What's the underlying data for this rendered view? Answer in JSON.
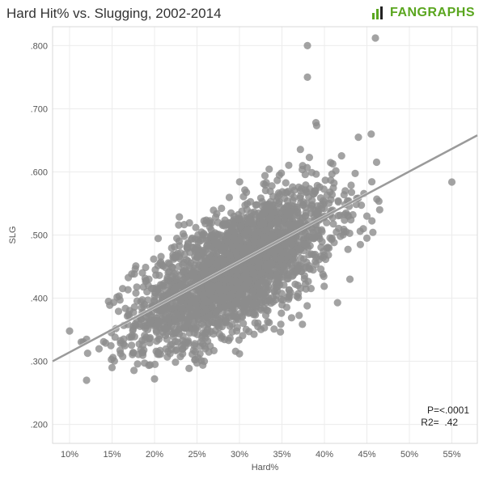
{
  "header": {
    "title": "Hard Hit% vs. Slugging, 2002-2014",
    "logo_text": "FANGRAPHS",
    "logo_color": "#5aa61f"
  },
  "chart_data": {
    "type": "scatter",
    "title": "Hard Hit% vs. Slugging, 2002-2014",
    "xlabel": "Hard%",
    "ylabel": "SLG",
    "xlim": [
      0.08,
      0.58
    ],
    "ylim": [
      0.17,
      0.83
    ],
    "x_ticks": [
      0.1,
      0.15,
      0.2,
      0.25,
      0.3,
      0.35,
      0.4,
      0.45,
      0.5,
      0.55
    ],
    "x_tick_labels": [
      "10%",
      "15%",
      "20%",
      "25%",
      "30%",
      "35%",
      "40%",
      "45%",
      "50%",
      "55%"
    ],
    "y_ticks": [
      0.2,
      0.3,
      0.4,
      0.5,
      0.6,
      0.7,
      0.8
    ],
    "y_tick_labels": [
      ".200",
      ".300",
      ".400",
      ".500",
      ".600",
      ".700",
      ".800"
    ],
    "grid": true,
    "point_color": "#8c8c8c",
    "trend_color": "#9a9a9a",
    "trend_line": {
      "x": [
        0.08,
        0.58
      ],
      "y": [
        0.3,
        0.658
      ]
    },
    "annotations": {
      "p_value": "P=<.0001",
      "r2": "R2=  .42"
    },
    "cloud": {
      "center_x": 0.295,
      "center_y": 0.445,
      "sd_x": 0.058,
      "sd_y": 0.062,
      "correlation": 0.65,
      "count": 2600
    },
    "outliers": [
      [
        0.38,
        0.8
      ],
      [
        0.46,
        0.812
      ],
      [
        0.38,
        0.75
      ],
      [
        0.55,
        0.584
      ],
      [
        0.1,
        0.348
      ],
      [
        0.12,
        0.27
      ],
      [
        0.2,
        0.272
      ],
      [
        0.45,
        0.495
      ],
      [
        0.39,
        0.678
      ],
      [
        0.44,
        0.655
      ],
      [
        0.455,
        0.66
      ],
      [
        0.43,
        0.43
      ],
      [
        0.465,
        0.54
      ],
      [
        0.45,
        0.53
      ],
      [
        0.12,
        0.335
      ],
      [
        0.15,
        0.29
      ]
    ]
  }
}
